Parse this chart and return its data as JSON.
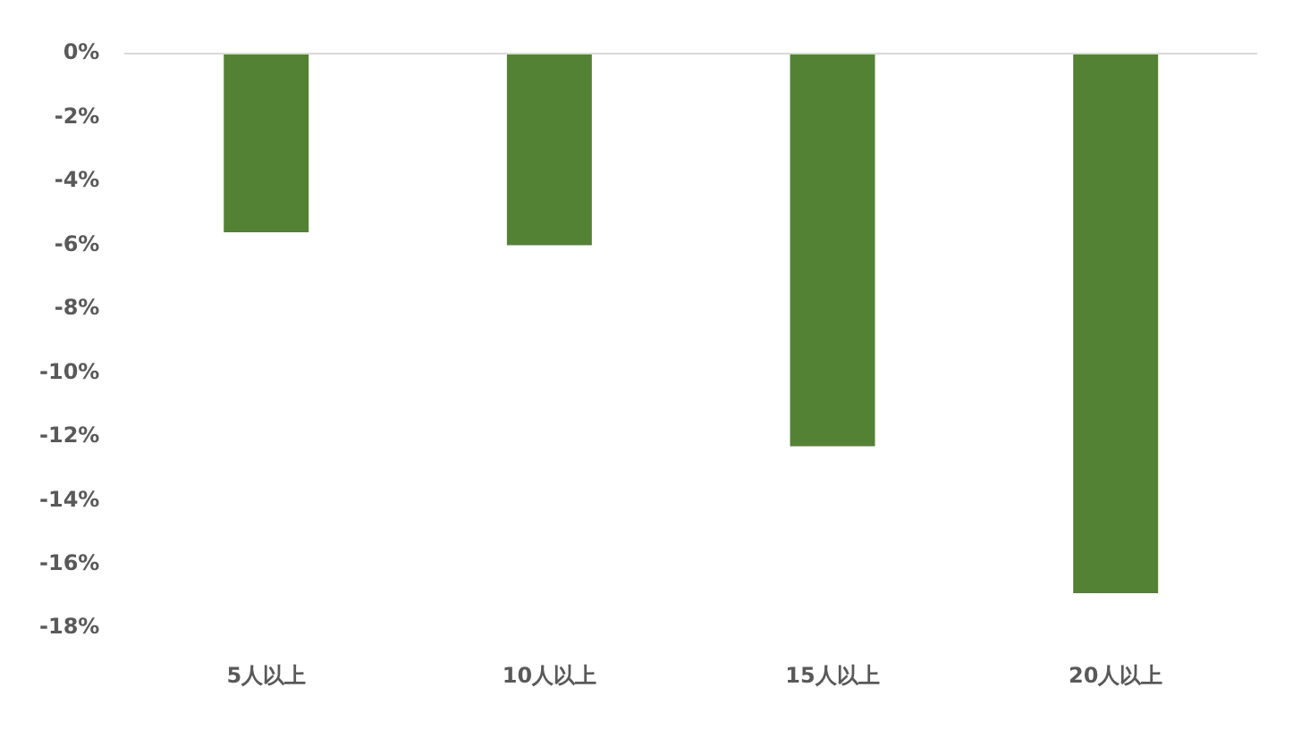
{
  "chart_data": {
    "type": "bar",
    "categories": [
      "5人以上",
      "10人以上",
      "15人以上",
      "20人以上"
    ],
    "values": [
      -5.6,
      -6.0,
      -12.3,
      -16.9
    ],
    "color": "#548235",
    "ylim": [
      -18,
      0
    ],
    "yticks": [
      {
        "value": 0,
        "label": "0%"
      },
      {
        "value": -2,
        "label": "-2%"
      },
      {
        "value": -4,
        "label": "-4%"
      },
      {
        "value": -6,
        "label": "-6%"
      },
      {
        "value": -8,
        "label": "-8%"
      },
      {
        "value": -10,
        "label": "-10%"
      },
      {
        "value": -12,
        "label": "-12%"
      },
      {
        "value": -14,
        "label": "-14%"
      },
      {
        "value": -16,
        "label": "-16%"
      },
      {
        "value": -18,
        "label": "-18%"
      }
    ],
    "grid": false,
    "legend": false
  }
}
